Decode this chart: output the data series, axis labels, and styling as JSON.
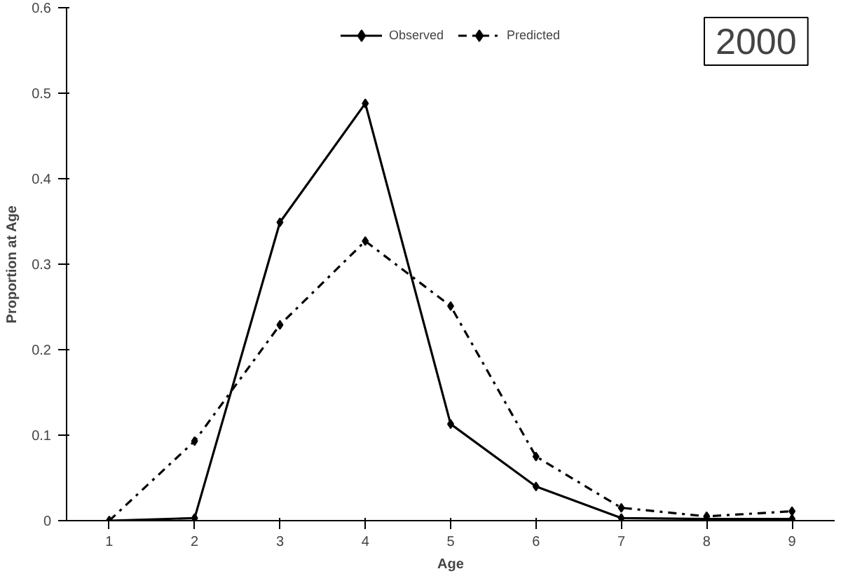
{
  "chart_data": {
    "type": "line",
    "categories": [
      "1",
      "2",
      "3",
      "4",
      "5",
      "6",
      "7",
      "8",
      "9"
    ],
    "series": [
      {
        "name": "Observed",
        "color": "#000000",
        "line_style": "solid",
        "values": [
          0,
          0.003,
          0.349,
          0.488,
          0.113,
          0.04,
          0.003,
          0.002,
          0.002
        ]
      },
      {
        "name": "Predicted",
        "color": "#000000",
        "line_style": "dashdot",
        "values": [
          0,
          0.093,
          0.229,
          0.327,
          0.251,
          0.075,
          0.015,
          0.005,
          0.011
        ]
      }
    ],
    "xlabel": "Age",
    "ylabel": "Proportion at Age",
    "ylim": [
      0,
      0.6
    ],
    "yticks": [
      0,
      0.1,
      0.2,
      0.3,
      0.4,
      0.5,
      0.6
    ],
    "marker": "diamond",
    "grid": false,
    "legend": "top",
    "annotations": [
      "2000"
    ]
  }
}
